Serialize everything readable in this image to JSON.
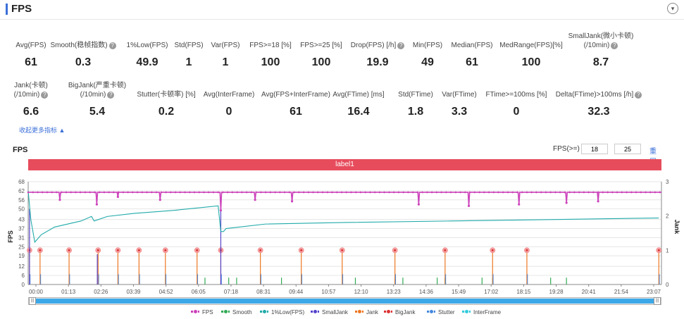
{
  "header": {
    "title": "FPS",
    "toggle_icon": "▾"
  },
  "metrics_row1": [
    {
      "label": "Avg(FPS)",
      "value": "61",
      "help": false
    },
    {
      "label": "Smooth(稳帧指数)",
      "value": "0.3",
      "help": true
    },
    {
      "label": "1%Low(FPS)",
      "value": "49.9",
      "help": false
    },
    {
      "label": "Std(FPS)",
      "value": "1",
      "help": false
    },
    {
      "label": "Var(FPS)",
      "value": "1",
      "help": false
    },
    {
      "label": "FPS>=18 [%]",
      "value": "100",
      "help": false
    },
    {
      "label": "FPS>=25 [%]",
      "value": "100",
      "help": false
    },
    {
      "label": "Drop(FPS) [/h]",
      "value": "19.9",
      "help": true
    },
    {
      "label": "Min(FPS)",
      "value": "49",
      "help": false
    },
    {
      "label": "Median(FPS)",
      "value": "61",
      "help": false
    },
    {
      "label": "MedRange(FPS)[%]",
      "value": "100",
      "help": false
    },
    {
      "label": "SmallJank(微小卡顿)",
      "label2": "(/10min)",
      "value": "8.7",
      "help": true
    }
  ],
  "metrics_row2": [
    {
      "label": "Jank(卡顿)",
      "label2": "(/10min)",
      "value": "6.6",
      "help": true
    },
    {
      "label": "BigJank(严重卡顿)",
      "label2": "(/10min)",
      "value": "5.4",
      "help": true
    },
    {
      "label": "Stutter(卡顿率) [%]",
      "value": "0.2",
      "help": false
    },
    {
      "label": "Avg(InterFrame)",
      "value": "0",
      "help": false
    },
    {
      "label": "Avg(FPS+InterFrame)",
      "value": "61",
      "help": false
    },
    {
      "label": "Avg(FTime) [ms]",
      "value": "16.4",
      "help": false
    },
    {
      "label": "Std(FTime)",
      "value": "1.8",
      "help": false
    },
    {
      "label": "Var(FTime)",
      "value": "3.3",
      "help": false
    },
    {
      "label": "FTime>=100ms [%]",
      "value": "0",
      "help": false
    },
    {
      "label": "Delta(FTime)>100ms [/h]",
      "value": "32.3",
      "help": true
    }
  ],
  "collapse_label": "收起更多指标",
  "collapse_icon": "▲",
  "chart_section_title": "FPS",
  "fps_filter": {
    "label": "FPS(>=)",
    "value1": "18",
    "value2": "25",
    "reset_label": "重置"
  },
  "label_bar": "label1",
  "chart_data": {
    "type": "line",
    "ylabel": "FPS",
    "y2label": "Jank",
    "yticks": [
      0,
      6,
      12,
      19,
      25,
      31,
      37,
      43,
      50,
      56,
      62,
      68
    ],
    "y2ticks": [
      0,
      1,
      2,
      3
    ],
    "ylim": [
      0,
      68
    ],
    "y2lim": [
      0,
      3
    ],
    "xticks": [
      "00:00",
      "01:13",
      "02:26",
      "03:39",
      "04:52",
      "06:05",
      "07:18",
      "08:31",
      "09:44",
      "10:57",
      "12:10",
      "13:23",
      "14:36",
      "15:49",
      "17:02",
      "18:15",
      "19:28",
      "20:41",
      "21:54",
      "23:07"
    ],
    "colors": {
      "FPS": "#cc44bb",
      "Smooth": "#33aa55",
      "1%Low(FPS)": "#22aaaa",
      "SmallJank": "#5544cc",
      "Jank": "#ee7722",
      "BigJank": "#dd3333",
      "Stutter": "#4488dd",
      "InterFrame": "#33ccdd"
    },
    "series": [
      {
        "name": "FPS",
        "typical": 61,
        "dips": [
          {
            "x": 1.2,
            "y": 56
          },
          {
            "x": 2.6,
            "y": 53
          },
          {
            "x": 3.4,
            "y": 58
          },
          {
            "x": 5.0,
            "y": 56
          },
          {
            "x": 7.3,
            "y": 49
          },
          {
            "x": 8.6,
            "y": 56
          },
          {
            "x": 10.0,
            "y": 55
          },
          {
            "x": 14.8,
            "y": 53
          },
          {
            "x": 16.7,
            "y": 52
          },
          {
            "x": 18.6,
            "y": 53
          },
          {
            "x": 20.4,
            "y": 54
          },
          {
            "x": 21.6,
            "y": 55
          }
        ]
      },
      {
        "name": "1%Low(FPS)",
        "points": [
          [
            0.0,
            62
          ],
          [
            0.1,
            43
          ],
          [
            0.25,
            28
          ],
          [
            0.5,
            33
          ],
          [
            1.0,
            38
          ],
          [
            2.0,
            42
          ],
          [
            2.4,
            45
          ],
          [
            2.5,
            42
          ],
          [
            3.0,
            45
          ],
          [
            4.0,
            47
          ],
          [
            5.5,
            49
          ],
          [
            7.2,
            52
          ],
          [
            7.3,
            35
          ],
          [
            7.4,
            35
          ],
          [
            7.5,
            37
          ],
          [
            9.0,
            40
          ],
          [
            12.0,
            41
          ],
          [
            16.0,
            42
          ],
          [
            20.0,
            43
          ],
          [
            23.9,
            44
          ]
        ]
      },
      {
        "name": "BigJank",
        "x": [
          0.05,
          0.45,
          1.55,
          2.65,
          3.4,
          4.2,
          5.2,
          6.4,
          7.3,
          8.8,
          10.35,
          11.9,
          13.9,
          15.8,
          17.6,
          18.9,
          23.9
        ],
        "y": 1
      },
      {
        "name": "Smooth",
        "x": [
          6.7,
          7.6,
          7.9,
          9.6,
          12.4,
          13.9,
          14.2,
          15.5,
          15.8,
          17.2,
          17.6,
          19.8,
          20.4
        ],
        "y": 0.2
      }
    ]
  },
  "legend": [
    "FPS",
    "Smooth",
    "1%Low(FPS)",
    "SmallJank",
    "Jank",
    "BigJank",
    "Stutter",
    "InterFrame"
  ]
}
